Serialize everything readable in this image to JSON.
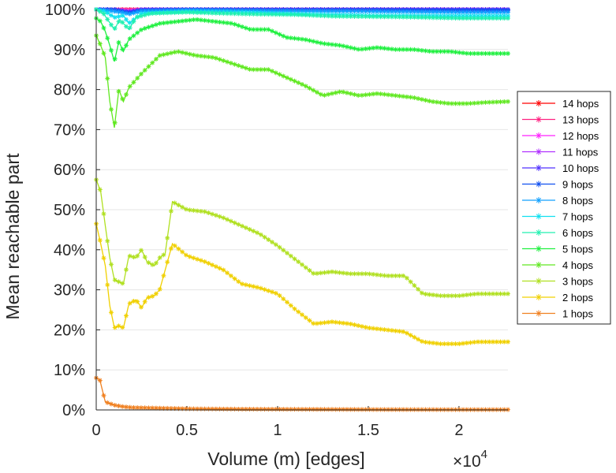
{
  "chart_data": {
    "type": "line",
    "xlabel": "Volume (m) [edges]",
    "ylabel": "Mean reachable part",
    "x_exponent_base": "×10",
    "x_exponent_power": "4",
    "xlim": [
      0,
      22700
    ],
    "ylim": [
      0,
      100
    ],
    "x_ticks": [
      0,
      5000,
      10000,
      15000,
      20000
    ],
    "x_tick_labels": [
      "0",
      "0.5",
      "1",
      "1.5",
      "2"
    ],
    "y_ticks": [
      0,
      10,
      20,
      30,
      40,
      50,
      60,
      70,
      80,
      90,
      100
    ],
    "y_tick_labels": [
      "0%",
      "10%",
      "20%",
      "30%",
      "40%",
      "50%",
      "60%",
      "70%",
      "80%",
      "90%",
      "100%"
    ],
    "grid": "horizontal",
    "legend_position": "right",
    "marker": "asterisk",
    "series": [
      {
        "name": "14 hops",
        "color": "#ff0000",
        "points": [
          [
            0,
            100
          ],
          [
            1000,
            100
          ],
          [
            2000,
            100
          ],
          [
            5000,
            100
          ],
          [
            10000,
            100
          ],
          [
            15000,
            100
          ],
          [
            20000,
            100
          ],
          [
            22700,
            100
          ]
        ]
      },
      {
        "name": "13 hops",
        "color": "#ff2080",
        "points": [
          [
            0,
            100
          ],
          [
            1000,
            100
          ],
          [
            2000,
            100
          ],
          [
            5000,
            100
          ],
          [
            10000,
            100
          ],
          [
            15000,
            100
          ],
          [
            20000,
            100
          ],
          [
            22700,
            100
          ]
        ]
      },
      {
        "name": "12 hops",
        "color": "#ff20ff",
        "points": [
          [
            0,
            100
          ],
          [
            1000,
            100
          ],
          [
            1800,
            99.6
          ],
          [
            2500,
            100
          ],
          [
            5000,
            100
          ],
          [
            10000,
            100
          ],
          [
            15000,
            100
          ],
          [
            20000,
            100
          ],
          [
            22700,
            100
          ]
        ]
      },
      {
        "name": "11 hops",
        "color": "#b030ff",
        "points": [
          [
            0,
            100
          ],
          [
            1000,
            100
          ],
          [
            1800,
            99.5
          ],
          [
            2500,
            100
          ],
          [
            5000,
            100
          ],
          [
            10000,
            100
          ],
          [
            15000,
            100
          ],
          [
            20000,
            100
          ],
          [
            22700,
            100
          ]
        ]
      },
      {
        "name": "10 hops",
        "color": "#5030ff",
        "points": [
          [
            0,
            100
          ],
          [
            1000,
            100
          ],
          [
            1800,
            99.3
          ],
          [
            2500,
            100
          ],
          [
            5000,
            100
          ],
          [
            10000,
            100
          ],
          [
            15000,
            100
          ],
          [
            20000,
            100
          ],
          [
            22700,
            100
          ]
        ]
      },
      {
        "name": "9 hops",
        "color": "#1050f0",
        "points": [
          [
            0,
            100
          ],
          [
            1000,
            100
          ],
          [
            1800,
            99.2
          ],
          [
            2500,
            99.8
          ],
          [
            5000,
            100
          ],
          [
            10000,
            99.9
          ],
          [
            15000,
            99.9
          ],
          [
            20000,
            99.8
          ],
          [
            22700,
            99.8
          ]
        ]
      },
      {
        "name": "8 hops",
        "color": "#10a0ff",
        "points": [
          [
            0,
            100
          ],
          [
            1000,
            99.5
          ],
          [
            1500,
            99.2
          ],
          [
            1800,
            98.8
          ],
          [
            2500,
            99.6
          ],
          [
            5000,
            99.8
          ],
          [
            10000,
            99.6
          ],
          [
            15000,
            99.5
          ],
          [
            20000,
            99.3
          ],
          [
            22700,
            99.3
          ]
        ]
      },
      {
        "name": "7 hops",
        "color": "#10e0f0",
        "points": [
          [
            0,
            100
          ],
          [
            500,
            99.5
          ],
          [
            1000,
            98
          ],
          [
            1500,
            98.5
          ],
          [
            1800,
            96.5
          ],
          [
            2500,
            99
          ],
          [
            5000,
            99.5
          ],
          [
            8000,
            99.3
          ],
          [
            10000,
            99
          ],
          [
            12000,
            98.8
          ],
          [
            15000,
            98.5
          ],
          [
            20000,
            98.4
          ],
          [
            22700,
            98.4
          ]
        ]
      },
      {
        "name": "6 hops",
        "color": "#20f0b0",
        "points": [
          [
            0,
            100
          ],
          [
            400,
            99
          ],
          [
            700,
            97
          ],
          [
            1000,
            95
          ],
          [
            1300,
            97.5
          ],
          [
            1600,
            96
          ],
          [
            1800,
            95
          ],
          [
            2200,
            98
          ],
          [
            3000,
            99
          ],
          [
            5000,
            99.3
          ],
          [
            7000,
            99
          ],
          [
            9000,
            98.8
          ],
          [
            11000,
            98.7
          ],
          [
            13000,
            98.3
          ],
          [
            15000,
            98.2
          ],
          [
            17000,
            98.1
          ],
          [
            20000,
            97.8
          ],
          [
            22700,
            97.8
          ]
        ]
      },
      {
        "name": "5 hops",
        "color": "#20f040",
        "points": [
          [
            0,
            97.8
          ],
          [
            250,
            97
          ],
          [
            500,
            94.5
          ],
          [
            750,
            91
          ],
          [
            1000,
            87
          ],
          [
            1250,
            92
          ],
          [
            1500,
            89.5
          ],
          [
            1800,
            92.5
          ],
          [
            2500,
            95
          ],
          [
            3500,
            96.5
          ],
          [
            4500,
            97
          ],
          [
            5500,
            97.5
          ],
          [
            6500,
            97
          ],
          [
            7500,
            96.5
          ],
          [
            8500,
            95
          ],
          [
            9500,
            95
          ],
          [
            10500,
            93
          ],
          [
            11500,
            92.5
          ],
          [
            12500,
            91.5
          ],
          [
            13500,
            91
          ],
          [
            14500,
            90
          ],
          [
            15500,
            90.5
          ],
          [
            16500,
            90
          ],
          [
            17500,
            90
          ],
          [
            18500,
            89.5
          ],
          [
            19500,
            89.5
          ],
          [
            20500,
            89
          ],
          [
            21500,
            89
          ],
          [
            22700,
            89
          ]
        ]
      },
      {
        "name": "4 hops",
        "color": "#60e820",
        "points": [
          [
            0,
            93.5
          ],
          [
            250,
            91
          ],
          [
            500,
            88
          ],
          [
            750,
            77
          ],
          [
            1000,
            70.5
          ],
          [
            1250,
            80
          ],
          [
            1500,
            77
          ],
          [
            1800,
            80.5
          ],
          [
            2500,
            84
          ],
          [
            3500,
            88.5
          ],
          [
            4500,
            89.5
          ],
          [
            5500,
            88.5
          ],
          [
            6500,
            88
          ],
          [
            7500,
            86.5
          ],
          [
            8500,
            85
          ],
          [
            9500,
            85
          ],
          [
            10500,
            83
          ],
          [
            11500,
            81
          ],
          [
            12500,
            78.5
          ],
          [
            13500,
            79.5
          ],
          [
            14500,
            78.5
          ],
          [
            15500,
            79
          ],
          [
            16500,
            78.5
          ],
          [
            17500,
            78
          ],
          [
            18500,
            77
          ],
          [
            19500,
            76.5
          ],
          [
            20500,
            76.5
          ],
          [
            21500,
            76.8
          ],
          [
            22700,
            77
          ]
        ]
      },
      {
        "name": "3 hops",
        "color": "#b0e020",
        "points": [
          [
            0,
            57.5
          ],
          [
            250,
            54.5
          ],
          [
            500,
            46
          ],
          [
            750,
            38
          ],
          [
            1000,
            32.5
          ],
          [
            1250,
            32
          ],
          [
            1500,
            31.5
          ],
          [
            1800,
            38.5
          ],
          [
            2200,
            38
          ],
          [
            2500,
            40
          ],
          [
            2800,
            37
          ],
          [
            3200,
            36
          ],
          [
            3500,
            38
          ],
          [
            3800,
            39
          ],
          [
            4200,
            52
          ],
          [
            5000,
            50
          ],
          [
            6000,
            49.5
          ],
          [
            7000,
            48
          ],
          [
            8000,
            46
          ],
          [
            9000,
            44
          ],
          [
            10000,
            41
          ],
          [
            11000,
            37.5
          ],
          [
            12000,
            34
          ],
          [
            13000,
            34.5
          ],
          [
            14000,
            34
          ],
          [
            15000,
            34
          ],
          [
            16000,
            33.5
          ],
          [
            17000,
            33.5
          ],
          [
            18000,
            29
          ],
          [
            19000,
            28.5
          ],
          [
            20000,
            28.5
          ],
          [
            21000,
            29
          ],
          [
            22700,
            29
          ]
        ]
      },
      {
        "name": "2 hops",
        "color": "#f0d000",
        "points": [
          [
            0,
            46.5
          ],
          [
            250,
            41.5
          ],
          [
            500,
            36
          ],
          [
            750,
            26
          ],
          [
            1000,
            20.5
          ],
          [
            1250,
            21
          ],
          [
            1500,
            20.5
          ],
          [
            1800,
            26.5
          ],
          [
            2200,
            27.5
          ],
          [
            2500,
            25.5
          ],
          [
            2800,
            28
          ],
          [
            3200,
            28.5
          ],
          [
            3500,
            30
          ],
          [
            4200,
            41.5
          ],
          [
            5000,
            38.5
          ],
          [
            6000,
            37
          ],
          [
            7000,
            35
          ],
          [
            8000,
            31.5
          ],
          [
            9000,
            30.5
          ],
          [
            10000,
            29
          ],
          [
            11000,
            25
          ],
          [
            12000,
            21.5
          ],
          [
            13000,
            22
          ],
          [
            14000,
            21.5
          ],
          [
            15000,
            20.5
          ],
          [
            16000,
            20
          ],
          [
            17000,
            19.5
          ],
          [
            18000,
            17
          ],
          [
            19000,
            16.5
          ],
          [
            20000,
            16.5
          ],
          [
            21000,
            17
          ],
          [
            22700,
            17
          ]
        ]
      },
      {
        "name": "1 hops",
        "color": "#f08020",
        "points": [
          [
            0,
            8
          ],
          [
            200,
            7.5
          ],
          [
            500,
            2
          ],
          [
            1000,
            1.2
          ],
          [
            1500,
            0.8
          ],
          [
            2000,
            0.6
          ],
          [
            3000,
            0.5
          ],
          [
            5000,
            0.3
          ],
          [
            8000,
            0.2
          ],
          [
            12000,
            0.15
          ],
          [
            16000,
            0.1
          ],
          [
            20000,
            0.08
          ],
          [
            22700,
            0.08
          ]
        ]
      }
    ]
  }
}
